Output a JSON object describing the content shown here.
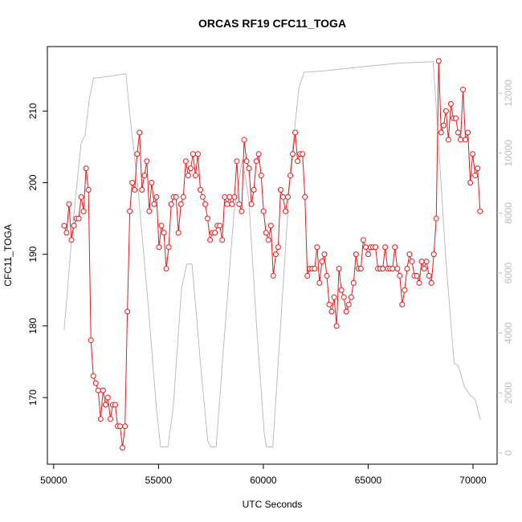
{
  "chart_data": {
    "type": "line",
    "title": "ORCAS RF19 CFC11_TOGA",
    "x_label": "UTC Seconds",
    "y_label": "CFC11_TOGA",
    "xlim": [
      49700,
      71150
    ],
    "xticks": [
      50000,
      55000,
      60000,
      65000,
      70000
    ],
    "ylim": [
      160.7,
      219.0
    ],
    "yticks": [
      170,
      180,
      190,
      200,
      210
    ],
    "y2lim": [
      -375,
      13554
    ],
    "y2ticks": [
      0,
      2000,
      4000,
      6000,
      8000,
      10000,
      12000
    ],
    "series": [
      {
        "color": "#e41a1c",
        "markers": true,
        "x": [
          50500,
          50616,
          50732,
          50848,
          50964,
          51080,
          51196,
          51312,
          51428,
          51544,
          51660,
          51776,
          51892,
          52008,
          52124,
          52240,
          52356,
          52472,
          52588,
          52704,
          52820,
          52936,
          53052,
          53168,
          53284,
          53400,
          53516,
          53632,
          53748,
          53864,
          53980,
          54096,
          54212,
          54328,
          54444,
          54560,
          54676,
          54792,
          54908,
          55024,
          55140,
          55256,
          55372,
          55488,
          55604,
          55720,
          55836,
          55952,
          56068,
          56184,
          56300,
          56416,
          56532,
          56648,
          56764,
          56880,
          56996,
          57112,
          57228,
          57344,
          57460,
          57576,
          57692,
          57808,
          57924,
          58040,
          58156,
          58272,
          58388,
          58504,
          58620,
          58736,
          58852,
          58968,
          59084,
          59200,
          59316,
          59432,
          59548,
          59664,
          59780,
          59896,
          60012,
          60128,
          60244,
          60360,
          60476,
          60592,
          60708,
          60824,
          60940,
          61056,
          61172,
          61288,
          61404,
          61520,
          61636,
          61752,
          61868,
          61984,
          62100,
          62216,
          62332,
          62448,
          62564,
          62680,
          62796,
          62912,
          63028,
          63144,
          63260,
          63376,
          63492,
          63608,
          63724,
          63840,
          63956,
          64072,
          64188,
          64304,
          64420,
          64536,
          64652,
          64768,
          64884,
          65000,
          65116,
          65232,
          65348,
          65464,
          65580,
          65696,
          65812,
          65928,
          66044,
          66160,
          66276,
          66392,
          66508,
          66624,
          66740,
          66856,
          66972,
          67088,
          67204,
          67320,
          67436,
          67552,
          67668,
          67784,
          67900,
          68016,
          68132,
          68248,
          68364,
          68480,
          68596,
          68712,
          68828,
          68944,
          69060,
          69176,
          69292,
          69408,
          69524,
          69640,
          69756,
          69872,
          69988,
          70104,
          70220,
          70336
        ],
        "values": [
          194,
          193,
          197,
          192,
          194,
          195,
          195,
          198,
          196,
          202,
          199,
          178,
          173,
          172,
          171,
          167,
          171,
          169,
          170,
          167,
          169,
          169,
          166,
          166,
          163,
          166,
          182,
          196,
          200,
          199,
          204,
          207,
          199,
          201,
          203,
          196,
          200,
          197,
          198,
          191,
          194,
          193,
          188,
          191,
          197,
          198,
          198,
          193,
          197,
          198,
          203,
          201,
          202,
          204,
          201,
          204,
          199,
          198,
          197,
          195,
          192,
          193,
          193,
          194,
          194,
          192,
          198,
          197,
          198,
          197,
          198,
          203,
          197,
          196,
          206,
          203,
          202,
          197,
          199,
          203,
          204,
          201,
          196,
          193,
          192,
          194,
          187,
          190,
          191,
          199,
          198,
          196,
          198,
          201,
          204,
          207,
          203,
          204,
          204,
          198,
          187,
          188,
          188,
          188,
          191,
          186,
          189,
          190,
          187,
          183,
          182,
          184,
          180,
          188,
          185,
          184,
          182,
          183,
          184,
          186,
          190,
          188,
          188,
          192,
          191,
          190,
          191,
          191,
          191,
          188,
          188,
          188,
          191,
          188,
          188,
          188,
          191,
          188,
          187,
          183,
          185,
          188,
          190,
          189,
          187,
          187,
          186,
          189,
          188,
          189,
          187,
          186,
          190,
          195,
          217,
          207,
          208,
          210,
          206,
          211,
          209,
          209,
          207,
          206,
          213,
          206,
          207,
          200,
          204,
          201,
          202,
          196
        ]
      },
      {
        "color": "#bdbdbd",
        "axis": "y2",
        "markers": false,
        "x": [
          50500,
          50900,
          51300,
          51500,
          51700,
          51900,
          52500,
          53000,
          53450,
          53600,
          54000,
          54500,
          54900,
          55100,
          55450,
          55700,
          56100,
          56350,
          56600,
          57000,
          57350,
          57500,
          57750,
          58100,
          58600,
          59000,
          59300,
          59700,
          60050,
          60150,
          60450,
          60800,
          61300,
          61700,
          61950,
          63000,
          65000,
          66500,
          68100,
          68300,
          68700,
          69100,
          69300,
          69600,
          69900,
          70100,
          70350
        ],
        "values": [
          4100,
          7500,
          10300,
          10600,
          11800,
          12500,
          12550,
          12600,
          12650,
          11500,
          9000,
          5000,
          1500,
          200,
          200,
          1500,
          5500,
          6300,
          6300,
          3000,
          400,
          200,
          200,
          3500,
          8000,
          9800,
          8500,
          4000,
          600,
          200,
          200,
          4000,
          9500,
          12200,
          12700,
          12750,
          12900,
          13000,
          13050,
          11000,
          6500,
          3000,
          2900,
          2200,
          1900,
          1800,
          1100
        ]
      }
    ]
  }
}
